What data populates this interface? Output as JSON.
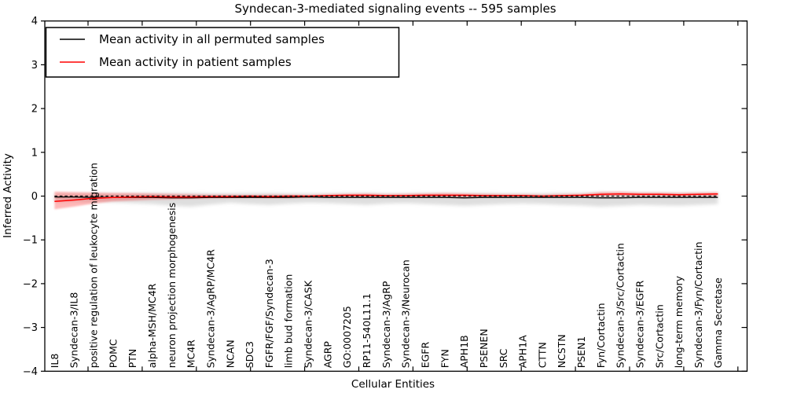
{
  "figure": {
    "title": "Syndecan-3-mediated signaling events -- 595 samples"
  },
  "legend": {
    "position": "upper left",
    "items": [
      {
        "label": "Mean activity in all permuted samples",
        "color": "#000000"
      },
      {
        "label": "Mean activity in patient samples",
        "color": "#ff0000"
      }
    ]
  },
  "colors": {
    "patient_line": "#ff0000",
    "patient_band": "rgba(255,0,0,0.28)",
    "permuted_line": "#000000",
    "permuted_band": "rgba(0,0,0,0.13)",
    "axis": "#000000",
    "background": "#ffffff"
  },
  "chart_data": {
    "type": "line",
    "title": "Syndecan-3-mediated signaling events -- 595 samples",
    "xlabel": "Cellular Entities",
    "ylabel": "Inferred Activity",
    "ylim": [
      -4,
      4
    ],
    "yticks": [
      4,
      3,
      2,
      1,
      0,
      -1,
      -2,
      -3,
      -4
    ],
    "grid": false,
    "legend_position": "upper left",
    "zero_line": {
      "y": 0,
      "style": "dashed",
      "color": "#000000"
    },
    "categories": [
      "IL8",
      "Syndecan-3/IL8",
      "positive regulation of leukocyte migration",
      "POMC",
      "PTN",
      "alpha-MSH/MC4R",
      "neuron projection morphogenesis",
      "MC4R",
      "Syndecan-3/AgRP/MC4R",
      "NCAN",
      "SDC3",
      "FGFR/FGF/Syndecan-3",
      "limb bud formation",
      "Syndecan-3/CASK",
      "AGRP",
      "GO:0007205",
      "RP11-540L11.1",
      "Syndecan-3/AgRP",
      "Syndecan-3/Neurocan",
      "EGFR",
      "FYN",
      "APH1B",
      "PSENEN",
      "SRC",
      "APH1A",
      "CTTN",
      "NCSTN",
      "PSEN1",
      "Fyn/Cortactin",
      "Syndecan-3/Src/Cortactin",
      "Syndecan-3/EGFR",
      "Src/Cortactin",
      "long-term memory",
      "Syndecan-3/Fyn/Cortactin",
      "Gamma Secretase"
    ],
    "series": [
      {
        "name": "Mean activity in all permuted samples",
        "color": "#000000",
        "style": "solid",
        "values": [
          -0.02,
          -0.02,
          -0.03,
          -0.03,
          -0.03,
          -0.03,
          -0.04,
          -0.04,
          -0.03,
          -0.03,
          -0.03,
          -0.03,
          -0.03,
          -0.02,
          -0.03,
          -0.03,
          -0.03,
          -0.03,
          -0.03,
          -0.03,
          -0.03,
          -0.04,
          -0.03,
          -0.03,
          -0.03,
          -0.03,
          -0.03,
          -0.03,
          -0.04,
          -0.04,
          -0.03,
          -0.03,
          -0.03,
          -0.03,
          -0.03
        ],
        "band_upper": [
          0.05,
          0.05,
          0.06,
          0.06,
          0.06,
          0.07,
          0.07,
          0.07,
          0.06,
          0.06,
          0.07,
          0.07,
          0.06,
          0.06,
          0.06,
          0.07,
          0.07,
          0.06,
          0.06,
          0.07,
          0.07,
          0.07,
          0.07,
          0.06,
          0.06,
          0.06,
          0.07,
          0.07,
          0.08,
          0.07,
          0.07,
          0.07,
          0.07,
          0.07,
          0.07
        ],
        "band_lower": [
          -0.12,
          -0.12,
          -0.13,
          -0.14,
          -0.16,
          -0.18,
          -0.22,
          -0.24,
          -0.19,
          -0.15,
          -0.18,
          -0.2,
          -0.17,
          -0.15,
          -0.16,
          -0.18,
          -0.2,
          -0.17,
          -0.16,
          -0.18,
          -0.2,
          -0.22,
          -0.2,
          -0.18,
          -0.17,
          -0.18,
          -0.2,
          -0.21,
          -0.24,
          -0.22,
          -0.2,
          -0.21,
          -0.22,
          -0.2,
          -0.18
        ]
      },
      {
        "name": "Mean activity in patient samples",
        "color": "#ff0000",
        "style": "solid",
        "values": [
          -0.12,
          -0.09,
          -0.05,
          -0.03,
          -0.02,
          -0.01,
          -0.02,
          -0.02,
          -0.01,
          -0.01,
          0,
          -0.01,
          0,
          0,
          0.01,
          0.02,
          0.02,
          0.01,
          0.01,
          0.02,
          0.02,
          0.02,
          0.01,
          0.01,
          0.01,
          0,
          0.01,
          0.02,
          0.04,
          0.05,
          0.04,
          0.04,
          0.03,
          0.04,
          0.05
        ],
        "band_upper": [
          0.1,
          0.09,
          0.08,
          0.07,
          0.07,
          0.06,
          0.05,
          0.04,
          0.03,
          0.03,
          0.02,
          0.03,
          0.03,
          0.02,
          0.04,
          0.05,
          0.06,
          0.04,
          0.05,
          0.06,
          0.07,
          0.06,
          0.05,
          0.04,
          0.04,
          0.03,
          0.04,
          0.05,
          0.09,
          0.1,
          0.08,
          0.08,
          0.07,
          0.08,
          0.09
        ],
        "band_lower": [
          -0.3,
          -0.24,
          -0.17,
          -0.12,
          -0.1,
          -0.08,
          -0.07,
          -0.06,
          -0.05,
          -0.04,
          -0.03,
          -0.04,
          -0.04,
          -0.03,
          -0.02,
          -0.02,
          -0.02,
          -0.02,
          -0.02,
          -0.01,
          -0.01,
          -0.02,
          -0.02,
          -0.01,
          -0.01,
          -0.01,
          -0.01,
          0,
          0,
          0.01,
          0,
          0.01,
          0,
          0.01,
          0
        ]
      }
    ]
  }
}
